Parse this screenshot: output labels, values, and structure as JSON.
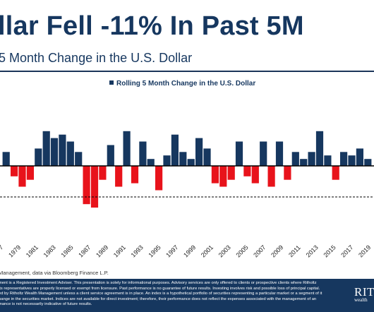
{
  "header": {
    "title": "llar Fell -11% In Past 5M",
    "subtitle": "5 Month Change in the U.S. Dollar"
  },
  "chart_data": {
    "type": "bar",
    "title": "",
    "legend": "Rolling 5 Month Change in the U.S. Dollar",
    "legend_placement": "top",
    "series": [
      {
        "name": "Rolling 5 Month Change in the U.S. Dollar",
        "positive_color": "#16375f",
        "negative_color": "#e8131b"
      }
    ],
    "x_tick_labels": [
      "1977",
      "1979",
      "1981",
      "1983",
      "1985",
      "1987",
      "1989",
      "1991",
      "1993",
      "1995",
      "1997",
      "1999",
      "2001",
      "2003",
      "2005",
      "2007",
      "2009",
      "2011",
      "2013",
      "2015",
      "2017",
      "2019"
    ],
    "reference_line": "dashed",
    "grid": false,
    "x": [
      "1976",
      "1977",
      "1978",
      "1979",
      "1980",
      "1981",
      "1982",
      "1983",
      "1984",
      "1985",
      "1986",
      "1987",
      "1988",
      "1989",
      "1990",
      "1991",
      "1992",
      "1993",
      "1994",
      "1995",
      "1996",
      "1997",
      "1998",
      "1999",
      "2000",
      "2001",
      "2002",
      "2003",
      "2004",
      "2005",
      "2006",
      "2007",
      "2008",
      "2009",
      "2010",
      "2011",
      "2012",
      "2013",
      "2014",
      "2015",
      "2016",
      "2017",
      "2018",
      "2019",
      "2020",
      "2021"
    ],
    "values": [
      4,
      -3,
      -6,
      -4,
      5,
      10,
      8,
      9,
      7,
      4,
      -11,
      -12,
      -4,
      6,
      -6,
      10,
      -5,
      7,
      2,
      -7,
      3,
      9,
      4,
      2,
      8,
      5,
      -5,
      -6,
      -4,
      7,
      -3,
      -5,
      7,
      -6,
      7,
      -4,
      4,
      2,
      4,
      10,
      3,
      -4,
      4,
      3,
      5,
      2
    ],
    "ylim": [
      -13,
      13
    ]
  },
  "footer": {
    "source": "Management, data via Bloomberg Finance L.P.",
    "disclaimer": "ment is a Registered Investment Adviser. This presentation is solely for informational purposes. Advisory services are only offered to clients or prospective clients where Ritholtz\n its representatives are properly licensed or exempt from licensure. Past performance is no guarantee of future results. Investing involves risk and possible loss of principal capital.\ned by Ritholtz Wealth Management unless a client service agreement is in place. An index is a hypothetical portfolio of securities representing a particular market or a segment of it\nhange in the securities market. Indices are not available for direct investment; therefore, their performance does not reflect the expenses associated with the management of an\nmance is not necessarily indicative of future results.",
    "logo_main": "RITH",
    "logo_sub": "wealth"
  },
  "colors": {
    "navy": "#16375f",
    "red": "#e8131b"
  }
}
